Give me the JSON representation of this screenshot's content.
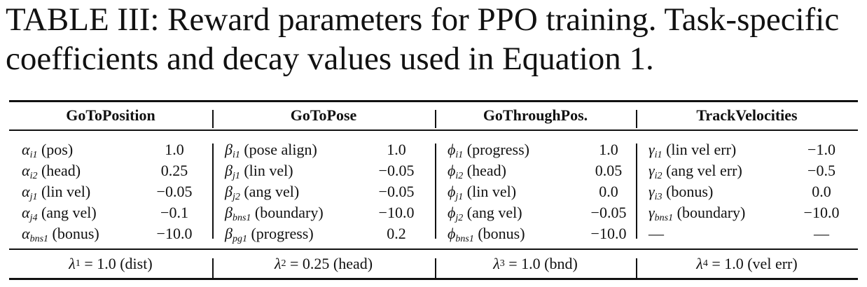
{
  "caption": "TABLE III: Reward parameters for PPO training. Task-specific coefficients and decay values used in Equation 1.",
  "columns": [
    {
      "header": "GoToPosition",
      "rows": [
        {
          "sym": "α",
          "sub": "i1",
          "desc": "(pos)",
          "value": "1.0"
        },
        {
          "sym": "α",
          "sub": "i2",
          "desc": "(head)",
          "value": "0.25"
        },
        {
          "sym": "α",
          "sub": "j1",
          "desc": "(lin vel)",
          "value": "−0.05"
        },
        {
          "sym": "α",
          "sub": "j4",
          "desc": "(ang vel)",
          "value": "−0.1"
        },
        {
          "sym": "α",
          "sub": "bns1",
          "desc": "(bonus)",
          "value": "−10.0"
        }
      ],
      "footer": {
        "sym": "λ",
        "sub": "1",
        "text": " = 1.0 (dist)"
      }
    },
    {
      "header": "GoToPose",
      "rows": [
        {
          "sym": "β",
          "sub": "i1",
          "desc": "(pose align)",
          "value": "1.0"
        },
        {
          "sym": "β",
          "sub": "j1",
          "desc": "(lin vel)",
          "value": "−0.05"
        },
        {
          "sym": "β",
          "sub": "j2",
          "desc": "(ang vel)",
          "value": "−0.05"
        },
        {
          "sym": "β",
          "sub": "bns1",
          "desc": "(boundary)",
          "value": "−10.0"
        },
        {
          "sym": "β",
          "sub": "pg1",
          "desc": "(progress)",
          "value": "0.2"
        }
      ],
      "footer": {
        "sym": "λ",
        "sub": "2",
        "text": " = 0.25 (head)"
      }
    },
    {
      "header": "GoThroughPos.",
      "rows": [
        {
          "sym": "ϕ",
          "sub": "i1",
          "desc": "(progress)",
          "value": "1.0"
        },
        {
          "sym": "ϕ",
          "sub": "i2",
          "desc": "(head)",
          "value": "0.05"
        },
        {
          "sym": "ϕ",
          "sub": "j1",
          "desc": "(lin vel)",
          "value": "0.0"
        },
        {
          "sym": "ϕ",
          "sub": "j2",
          "desc": "(ang vel)",
          "value": "−0.05"
        },
        {
          "sym": "ϕ",
          "sub": "bns1",
          "desc": "(bonus)",
          "value": "−10.0"
        }
      ],
      "footer": {
        "sym": "λ",
        "sub": "3",
        "text": " = 1.0 (bnd)"
      }
    },
    {
      "header": "TrackVelocities",
      "rows": [
        {
          "sym": "γ",
          "sub": "i1",
          "desc": "(lin vel err)",
          "value": "−1.0"
        },
        {
          "sym": "γ",
          "sub": "i2",
          "desc": "(ang vel err)",
          "value": "−0.5"
        },
        {
          "sym": "γ",
          "sub": "i3",
          "desc": "(bonus)",
          "value": "0.0"
        },
        {
          "sym": "γ",
          "sub": "bns1",
          "desc": "(boundary)",
          "value": "−10.0"
        },
        {
          "sym": "",
          "sub": "",
          "desc": "—",
          "value": "—"
        }
      ],
      "footer": {
        "sym": "λ",
        "sub": "4",
        "text": " = 1.0 (vel err)"
      }
    }
  ]
}
